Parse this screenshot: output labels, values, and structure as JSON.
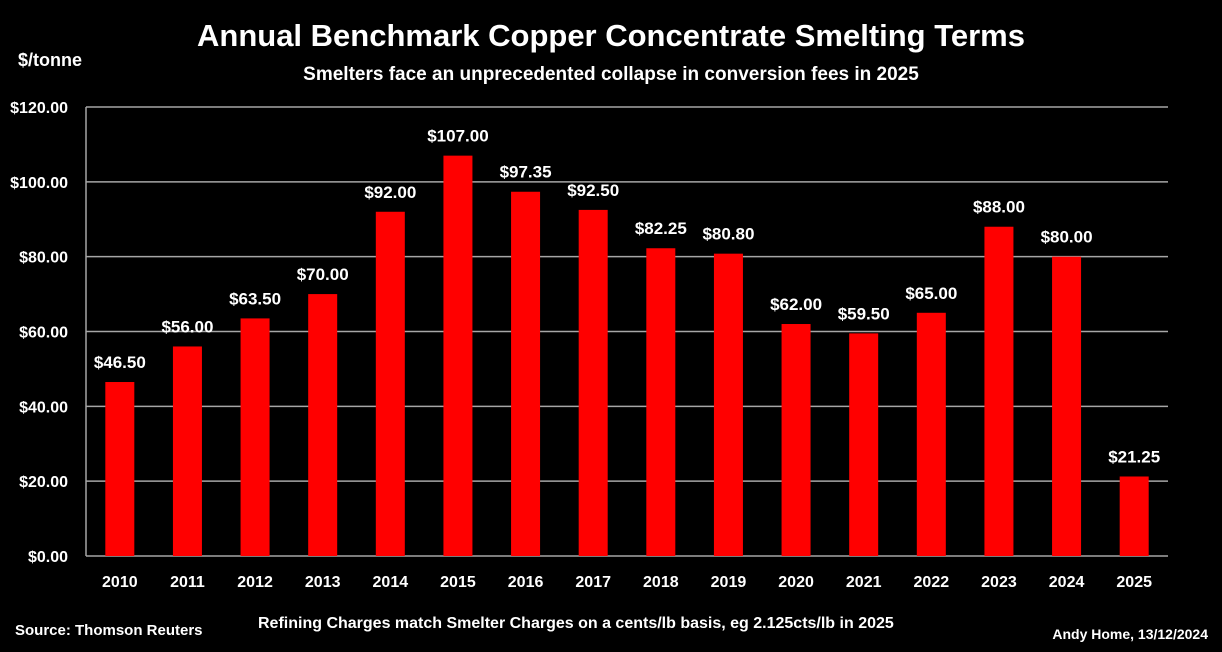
{
  "chart_data": {
    "type": "bar",
    "title": "Annual Benchmark Copper Concentrate Smelting Terms",
    "subtitle": "Smelters face an unprecedented collapse in conversion fees in 2025",
    "ylabel": "$/tonne",
    "categories": [
      "2010",
      "2011",
      "2012",
      "2013",
      "2014",
      "2015",
      "2016",
      "2017",
      "2018",
      "2019",
      "2020",
      "2021",
      "2022",
      "2023",
      "2024",
      "2025"
    ],
    "values": [
      46.5,
      56,
      63.5,
      70,
      92,
      107,
      97.35,
      92.5,
      82.25,
      80.8,
      62,
      59.5,
      65,
      88,
      80,
      21.25
    ],
    "data_labels": [
      "$46.50",
      "$56.00",
      "$63.50",
      "$70.00",
      "$92.00",
      "$107.00",
      "$97.35",
      "$92.50",
      "$82.25",
      "$80.80",
      "$62.00",
      "$59.50",
      "$65.00",
      "$88.00",
      "$80.00",
      "$21.25"
    ],
    "ylim": [
      0,
      120
    ],
    "yticks": [
      0,
      20,
      40,
      60,
      80,
      100,
      120
    ],
    "ytick_labels": [
      "$0.00",
      "$20.00",
      "$40.00",
      "$60.00",
      "$80.00",
      "$100.00",
      "$120.00"
    ],
    "grid": true,
    "bar_color": "#ff0000",
    "grid_color": "#a6a6a6",
    "background_color": "#000000"
  },
  "footer": {
    "source": "Source: Thomson Reuters",
    "note": "Refining Charges match Smelter Charges on a cents/lb basis, eg 2.125cts/lb in 2025",
    "credit": "Andy Home, 13/12/2024"
  }
}
